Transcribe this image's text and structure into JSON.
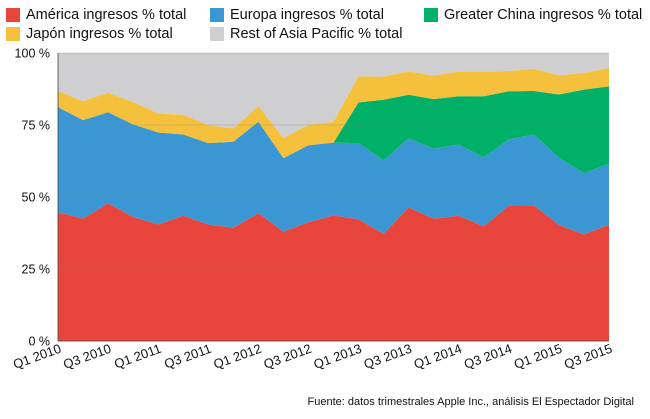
{
  "chart_data": {
    "type": "area",
    "stacked": true,
    "categories": [
      "Q1 2010",
      "Q2 2010",
      "Q3 2010",
      "Q4 2010",
      "Q1 2011",
      "Q2 2011",
      "Q3 2011",
      "Q4 2011",
      "Q1 2012",
      "Q2 2012",
      "Q3 2012",
      "Q4 2012",
      "Q1 2013",
      "Q2 2013",
      "Q3 2013",
      "Q4 2013",
      "Q1 2014",
      "Q2 2014",
      "Q3 2014",
      "Q4 2014",
      "Q1 2015",
      "Q2 2015",
      "Q3 2015"
    ],
    "x_tick_labels": [
      "Q1 2010",
      "Q3 2010",
      "Q1 2011",
      "Q3 2011",
      "Q1 2012",
      "Q3 2012",
      "Q1 2013",
      "Q3 2013",
      "Q1 2014",
      "Q3 2014",
      "Q1 2015",
      "Q3 2015"
    ],
    "y_tick_labels": [
      "0 %",
      "25 %",
      "50 %",
      "75 %",
      "100 %"
    ],
    "ylim": [
      0,
      100
    ],
    "series": [
      {
        "name": "América ingresos % total",
        "color": "#e8463d",
        "values": [
          44.7,
          42.5,
          47.8,
          43.1,
          40.5,
          43.5,
          40.5,
          39.3,
          44.4,
          38.0,
          41.3,
          43.6,
          42.3,
          37.2,
          46.4,
          42.5,
          43.5,
          39.8,
          47.0,
          47.1,
          40.3,
          37.0,
          40.4
        ]
      },
      {
        "name": "Europa ingresos % total",
        "color": "#3a97d4",
        "values": [
          36.5,
          34.2,
          31.6,
          32.1,
          31.9,
          28.2,
          28.2,
          29.9,
          31.7,
          25.5,
          26.7,
          25.3,
          26.4,
          25.5,
          24.0,
          24.3,
          24.7,
          24.0,
          23.0,
          24.6,
          23.3,
          21.3,
          21.2
        ]
      },
      {
        "name": "Greater China ingresos % total",
        "color": "#00b066",
        "values": [
          0,
          0,
          0,
          0,
          0,
          0,
          0,
          0,
          0,
          0,
          0,
          0,
          14.1,
          21.1,
          15.1,
          17.2,
          16.8,
          21.2,
          16.7,
          15.1,
          22.0,
          29.0,
          26.8
        ]
      },
      {
        "name": "Japón ingresos % total",
        "color": "#f5c03b",
        "values": [
          5.6,
          6.6,
          6.8,
          7.8,
          6.7,
          6.8,
          6.3,
          4.6,
          5.5,
          7.0,
          7.1,
          7.2,
          9.1,
          8.0,
          8.1,
          8.1,
          8.6,
          8.6,
          7.0,
          7.8,
          6.7,
          5.8,
          6.4
        ]
      },
      {
        "name": "Rest of Asia Pacific % total",
        "color": "#cfcfd2",
        "values": [
          13.2,
          16.7,
          13.8,
          17.0,
          20.9,
          21.5,
          25.0,
          26.2,
          18.4,
          29.5,
          24.9,
          23.9,
          8.1,
          8.2,
          6.4,
          7.9,
          6.4,
          6.4,
          6.3,
          5.4,
          7.7,
          6.9,
          5.2
        ]
      }
    ],
    "grid": "horizontal",
    "legend_position": "top",
    "source_note": "Fuente: datos trimestrales Apple Inc., análisis El Espectador Digital"
  }
}
